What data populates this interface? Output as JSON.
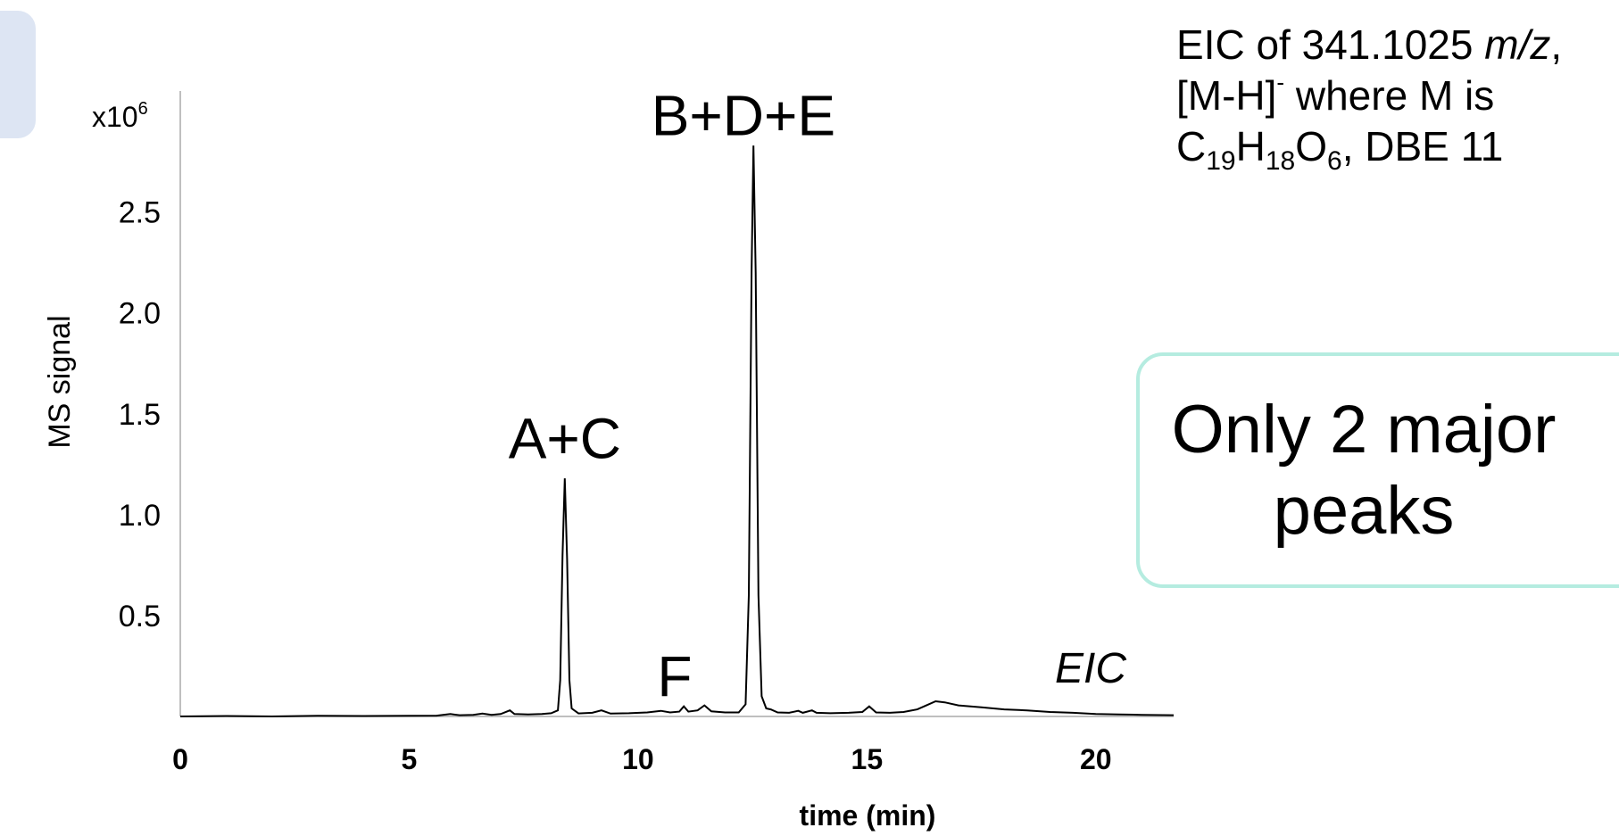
{
  "chart_data": {
    "type": "line",
    "xlabel": "time (min)",
    "ylabel": "MS signal",
    "y_multiplier_label": "x10",
    "y_multiplier_exponent": "6",
    "xlim": [
      0,
      21.7
    ],
    "ylim": [
      0,
      3.1
    ],
    "x_ticks": [
      0,
      5,
      10,
      15,
      20
    ],
    "y_ticks": [
      0.5,
      1.0,
      1.5,
      2.0,
      2.5
    ],
    "y_tick_labels": [
      "0.5",
      "1.0",
      "1.5",
      "2.0",
      "2.5"
    ],
    "trace_label": "EIC",
    "grid": false,
    "peak_labels": [
      {
        "text": "A+C",
        "x": 8.4,
        "y": 1.28
      },
      {
        "text": "F",
        "x": 10.8,
        "y": 0.1
      },
      {
        "text": "B+D+E",
        "x": 12.3,
        "y": 2.88
      }
    ],
    "series": [
      {
        "color": "#000000",
        "points": [
          [
            0.0,
            0.0
          ],
          [
            1.0,
            0.002
          ],
          [
            2.0,
            0.0
          ],
          [
            3.0,
            0.003
          ],
          [
            4.0,
            0.002
          ],
          [
            5.0,
            0.003
          ],
          [
            5.6,
            0.004
          ],
          [
            5.9,
            0.012
          ],
          [
            6.1,
            0.006
          ],
          [
            6.4,
            0.008
          ],
          [
            6.6,
            0.014
          ],
          [
            6.8,
            0.008
          ],
          [
            7.0,
            0.012
          ],
          [
            7.2,
            0.03
          ],
          [
            7.3,
            0.012
          ],
          [
            7.6,
            0.01
          ],
          [
            7.9,
            0.012
          ],
          [
            8.1,
            0.016
          ],
          [
            8.25,
            0.03
          ],
          [
            8.3,
            0.18
          ],
          [
            8.35,
            0.8
          ],
          [
            8.4,
            1.18
          ],
          [
            8.45,
            0.78
          ],
          [
            8.5,
            0.18
          ],
          [
            8.55,
            0.04
          ],
          [
            8.7,
            0.015
          ],
          [
            9.0,
            0.018
          ],
          [
            9.2,
            0.03
          ],
          [
            9.4,
            0.014
          ],
          [
            9.8,
            0.016
          ],
          [
            10.2,
            0.02
          ],
          [
            10.5,
            0.028
          ],
          [
            10.7,
            0.02
          ],
          [
            10.9,
            0.024
          ],
          [
            11.0,
            0.05
          ],
          [
            11.1,
            0.024
          ],
          [
            11.3,
            0.03
          ],
          [
            11.45,
            0.055
          ],
          [
            11.6,
            0.025
          ],
          [
            11.9,
            0.02
          ],
          [
            12.2,
            0.02
          ],
          [
            12.35,
            0.06
          ],
          [
            12.42,
            0.6
          ],
          [
            12.48,
            2.2
          ],
          [
            12.52,
            2.83
          ],
          [
            12.57,
            2.2
          ],
          [
            12.63,
            0.6
          ],
          [
            12.7,
            0.1
          ],
          [
            12.8,
            0.04
          ],
          [
            12.9,
            0.035
          ],
          [
            13.05,
            0.02
          ],
          [
            13.3,
            0.018
          ],
          [
            13.5,
            0.028
          ],
          [
            13.6,
            0.018
          ],
          [
            13.8,
            0.03
          ],
          [
            13.9,
            0.018
          ],
          [
            14.2,
            0.016
          ],
          [
            14.6,
            0.018
          ],
          [
            14.9,
            0.022
          ],
          [
            15.05,
            0.05
          ],
          [
            15.2,
            0.02
          ],
          [
            15.5,
            0.018
          ],
          [
            15.8,
            0.022
          ],
          [
            16.1,
            0.035
          ],
          [
            16.3,
            0.055
          ],
          [
            16.5,
            0.075
          ],
          [
            16.7,
            0.07
          ],
          [
            17.0,
            0.055
          ],
          [
            17.5,
            0.045
          ],
          [
            18.0,
            0.035
          ],
          [
            18.5,
            0.03
          ],
          [
            19.0,
            0.022
          ],
          [
            19.5,
            0.018
          ],
          [
            20.0,
            0.012
          ],
          [
            20.5,
            0.01
          ],
          [
            21.0,
            0.008
          ],
          [
            21.7,
            0.006
          ]
        ]
      }
    ]
  },
  "info_box": {
    "line1_main": "EIC of 341.1025 ",
    "line1_italic": "m/z",
    "line1_end": ",",
    "line2_main": "[M-H]",
    "line2_sup": "-",
    "line2_end": " where M is",
    "line3_c": "C",
    "line3_c_sub": "19",
    "line3_h": "H",
    "line3_h_sub": "18",
    "line3_o": "O",
    "line3_o_sub": "6",
    "line3_end": ", DBE 11"
  },
  "callout": {
    "text": "Only 2 major peaks",
    "border_color": "#b5ece0"
  }
}
